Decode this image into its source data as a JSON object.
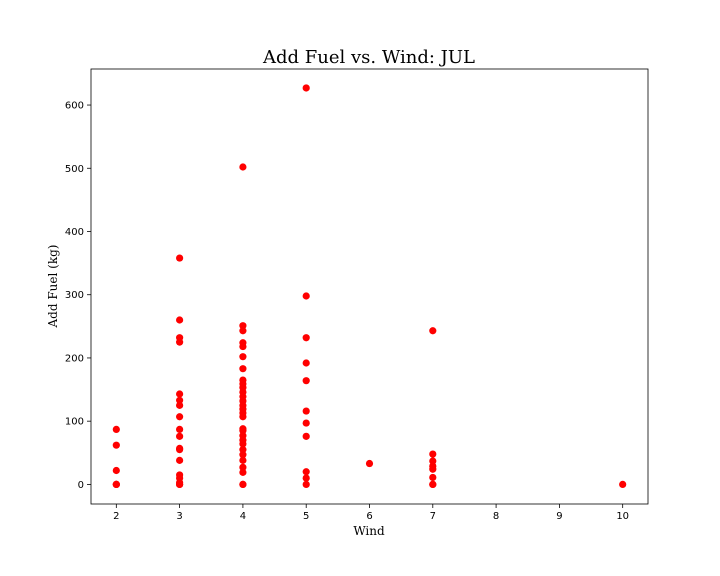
{
  "chart_data": {
    "type": "scatter",
    "title": "Add Fuel vs. Wind: JUL",
    "xlabel": "Wind",
    "ylabel": "Add Fuel (kg)",
    "xlim": [
      1.6,
      10.4
    ],
    "ylim": [
      -31,
      657
    ],
    "xticks": [
      2,
      3,
      4,
      5,
      6,
      7,
      8,
      9,
      10
    ],
    "yticks": [
      0,
      100,
      200,
      300,
      400,
      500,
      600
    ],
    "grid": false,
    "marker_color": "#ff0000",
    "series": [
      {
        "points": [
          [
            2,
            87
          ],
          [
            2,
            62
          ],
          [
            2,
            22
          ],
          [
            2,
            0
          ],
          [
            2,
            0
          ],
          [
            2,
            0
          ],
          [
            3,
            358
          ],
          [
            3,
            260
          ],
          [
            3,
            232
          ],
          [
            3,
            225
          ],
          [
            3,
            143
          ],
          [
            3,
            133
          ],
          [
            3,
            125
          ],
          [
            3,
            107
          ],
          [
            3,
            87
          ],
          [
            3,
            76
          ],
          [
            3,
            57
          ],
          [
            3,
            55
          ],
          [
            3,
            38
          ],
          [
            3,
            15
          ],
          [
            3,
            10
          ],
          [
            3,
            3
          ],
          [
            3,
            0
          ],
          [
            3,
            0
          ],
          [
            4,
            502
          ],
          [
            4,
            251
          ],
          [
            4,
            243
          ],
          [
            4,
            224
          ],
          [
            4,
            218
          ],
          [
            4,
            202
          ],
          [
            4,
            183
          ],
          [
            4,
            165
          ],
          [
            4,
            159
          ],
          [
            4,
            153
          ],
          [
            4,
            146
          ],
          [
            4,
            139
          ],
          [
            4,
            132
          ],
          [
            4,
            125
          ],
          [
            4,
            119
          ],
          [
            4,
            113
          ],
          [
            4,
            107
          ],
          [
            4,
            88
          ],
          [
            4,
            85
          ],
          [
            4,
            77
          ],
          [
            4,
            70
          ],
          [
            4,
            64
          ],
          [
            4,
            55
          ],
          [
            4,
            47
          ],
          [
            4,
            38
          ],
          [
            4,
            27
          ],
          [
            4,
            19
          ],
          [
            4,
            0
          ],
          [
            4,
            0
          ],
          [
            5,
            627
          ],
          [
            5,
            298
          ],
          [
            5,
            232
          ],
          [
            5,
            192
          ],
          [
            5,
            164
          ],
          [
            5,
            116
          ],
          [
            5,
            97
          ],
          [
            5,
            76
          ],
          [
            5,
            20
          ],
          [
            5,
            10
          ],
          [
            5,
            0
          ],
          [
            6,
            33
          ],
          [
            7,
            243
          ],
          [
            7,
            48
          ],
          [
            7,
            37
          ],
          [
            7,
            29
          ],
          [
            7,
            24
          ],
          [
            7,
            11
          ],
          [
            7,
            0
          ],
          [
            7,
            0
          ],
          [
            10,
            0
          ]
        ]
      }
    ]
  }
}
